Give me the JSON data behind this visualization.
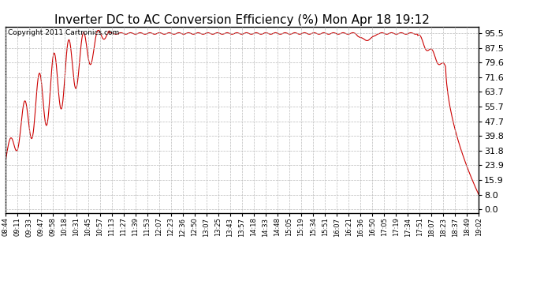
{
  "title": "Inverter DC to AC Conversion Efficiency (%) Mon Apr 18 19:12",
  "copyright": "Copyright 2011 Cartronics.com",
  "line_color": "#cc0000",
  "background_color": "#ffffff",
  "grid_color": "#bbbbbb",
  "yticks": [
    0.0,
    8.0,
    15.9,
    23.9,
    31.8,
    39.8,
    47.7,
    55.7,
    63.7,
    71.6,
    79.6,
    87.5,
    95.5
  ],
  "ylim": [
    -2.0,
    99.0
  ],
  "xtick_labels": [
    "08:44",
    "09:11",
    "09:33",
    "09:47",
    "09:58",
    "10:18",
    "10:31",
    "10:45",
    "10:57",
    "11:13",
    "11:27",
    "11:39",
    "11:53",
    "12:07",
    "12:23",
    "12:36",
    "12:50",
    "13:07",
    "13:25",
    "13:43",
    "13:57",
    "14:18",
    "14:33",
    "14:48",
    "15:05",
    "15:19",
    "15:34",
    "15:51",
    "16:07",
    "16:21",
    "16:36",
    "16:50",
    "17:05",
    "17:19",
    "17:34",
    "17:51",
    "18:07",
    "18:23",
    "18:37",
    "18:49",
    "19:02"
  ],
  "title_fontsize": 11,
  "copyright_fontsize": 6.5,
  "tick_fontsize": 6,
  "line_width": 0.8
}
